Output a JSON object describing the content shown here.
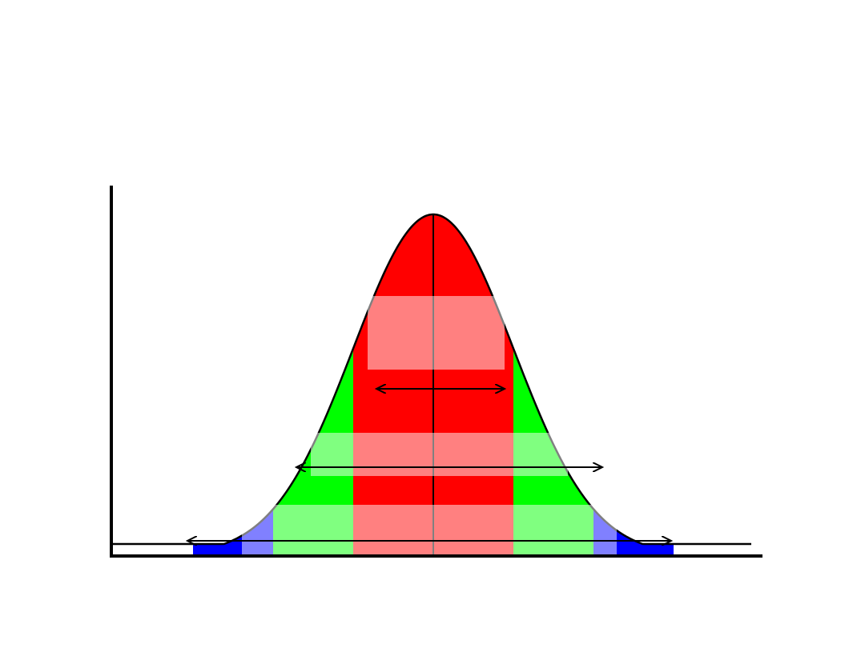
{
  "diagram": {
    "type": "normal-distribution-empirical-rule",
    "labels": [],
    "colors": {
      "background": "#ffffff",
      "axis": "#000000",
      "curve": "#000000",
      "band_1sd": "#ff0000",
      "band_2sd": "#00ff00",
      "band_3sd": "#0000ff",
      "label_box": "#ffffff",
      "center_line": "#000000",
      "arrow": "#000000"
    },
    "bands": [
      {
        "name": "within-1-sd",
        "sigma": 1,
        "color_key": "band_1sd"
      },
      {
        "name": "within-2-sd",
        "sigma": 2,
        "color_key": "band_2sd"
      },
      {
        "name": "within-3-sd",
        "sigma": 3,
        "color_key": "band_3sd"
      }
    ]
  }
}
